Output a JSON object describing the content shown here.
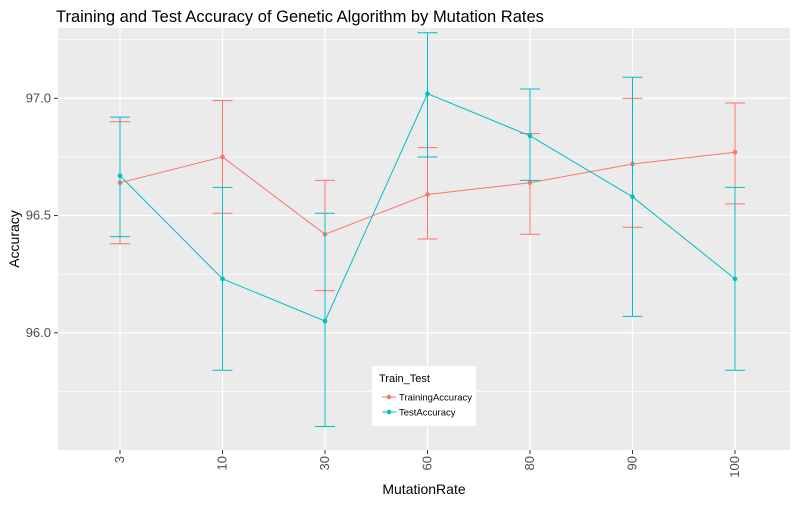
{
  "chart_data": {
    "type": "line",
    "title": "Training and Test Accuracy of Genetic Algorithm by Mutation Rates",
    "xlabel": "MutationRate",
    "ylabel": "Accuracy",
    "categories": [
      "3",
      "10",
      "30",
      "60",
      "80",
      "90",
      "100"
    ],
    "ylim": [
      95.5,
      97.3
    ],
    "yticks": [
      96.0,
      96.5,
      97.0
    ],
    "ytick_labels": [
      "96.0",
      "96.5",
      "97.0"
    ],
    "grid": true,
    "error_bars": true,
    "legend": {
      "title": "Train_Test",
      "position": "bottom-center inside plot"
    },
    "series": [
      {
        "name": "TrainingAccuracy",
        "color": "#F8766D",
        "values": [
          96.64,
          96.75,
          96.42,
          96.59,
          96.64,
          96.72,
          96.77
        ],
        "lower": [
          96.38,
          96.51,
          96.18,
          96.4,
          96.42,
          96.45,
          96.55
        ],
        "upper": [
          96.9,
          96.99,
          96.65,
          96.79,
          96.85,
          97.0,
          96.98
        ]
      },
      {
        "name": "TestAccuracy",
        "color": "#00BFC4",
        "values": [
          96.67,
          96.23,
          96.05,
          97.02,
          96.84,
          96.58,
          96.23
        ],
        "lower": [
          96.41,
          95.84,
          95.6,
          96.75,
          96.65,
          96.07,
          95.84
        ],
        "upper": [
          96.92,
          96.62,
          96.51,
          97.28,
          97.04,
          97.09,
          96.62
        ]
      }
    ]
  },
  "colors": {
    "panel_background": "#EBEBEB",
    "grid_line": "#FFFFFF"
  }
}
